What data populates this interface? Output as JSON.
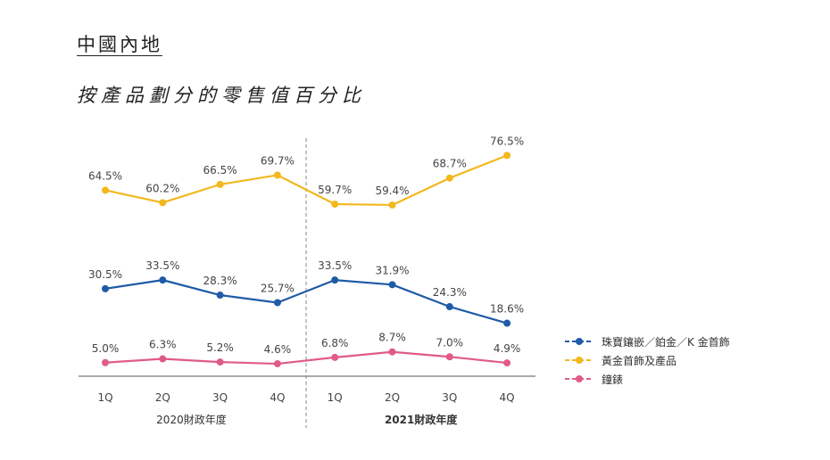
{
  "region_title": "中國內地",
  "chart_title": "按產品劃分的零售值百分比",
  "chart_data": {
    "type": "line",
    "categories": [
      "1Q",
      "2Q",
      "3Q",
      "4Q",
      "1Q",
      "2Q",
      "3Q",
      "4Q"
    ],
    "periods": [
      {
        "label": "2020財政年度",
        "bold": false
      },
      {
        "label": "2021財政年度",
        "bold": true
      }
    ],
    "series": [
      {
        "name": "黃金首飾及產品",
        "color": "#F2B81D",
        "values": [
          64.5,
          60.2,
          66.5,
          69.7,
          59.7,
          59.4,
          68.7,
          76.5
        ],
        "labels": [
          "64.5%",
          "60.2%",
          "66.5%",
          "69.7%",
          "59.7%",
          "59.4%",
          "68.7%",
          "76.5%"
        ]
      },
      {
        "name": "珠寶鑲嵌／鉑金／K 金首飾",
        "color": "#1F5BA6",
        "values": [
          30.5,
          33.5,
          28.3,
          25.7,
          33.5,
          31.9,
          24.3,
          18.6
        ],
        "labels": [
          "30.5%",
          "33.5%",
          "28.3%",
          "25.7%",
          "33.5%",
          "31.9%",
          "24.3%",
          "18.6%"
        ]
      },
      {
        "name": "鐘錶",
        "color": "#E05A8A",
        "values": [
          5.0,
          6.3,
          5.2,
          4.6,
          6.8,
          8.7,
          7.0,
          4.9
        ],
        "labels": [
          "5.0%",
          "6.3%",
          "5.2%",
          "4.6%",
          "6.8%",
          "8.7%",
          "7.0%",
          "4.9%"
        ]
      }
    ],
    "ylim": [
      0,
      80
    ],
    "grid": false,
    "legend_position": "right"
  },
  "legend_order": [
    1,
    0,
    2
  ]
}
